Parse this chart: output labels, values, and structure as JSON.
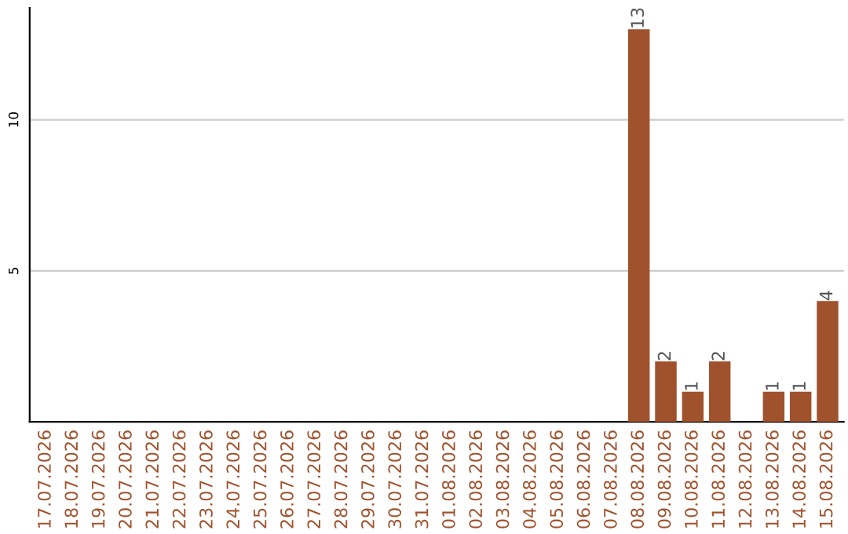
{
  "chart_data": {
    "type": "bar",
    "categories": [
      "17.07.2026",
      "18.07.2026",
      "19.07.2026",
      "20.07.2026",
      "21.07.2026",
      "22.07.2026",
      "23.07.2026",
      "24.07.2026",
      "25.07.2026",
      "26.07.2026",
      "27.07.2026",
      "28.07.2026",
      "29.07.2026",
      "30.07.2026",
      "31.07.2026",
      "01.08.2026",
      "02.08.2026",
      "03.08.2026",
      "04.08.2026",
      "05.08.2026",
      "06.08.2026",
      "07.08.2026",
      "08.08.2026",
      "09.08.2026",
      "10.08.2026",
      "11.08.2026",
      "12.08.2026",
      "13.08.2026",
      "14.08.2026",
      "15.08.2026"
    ],
    "values": [
      0,
      0,
      0,
      0,
      0,
      0,
      0,
      0,
      0,
      0,
      0,
      0,
      0,
      0,
      0,
      0,
      0,
      0,
      0,
      0,
      0,
      0,
      13,
      2,
      1,
      2,
      0,
      1,
      1,
      4
    ],
    "value_labels": [
      null,
      null,
      null,
      null,
      null,
      null,
      null,
      null,
      null,
      null,
      null,
      null,
      null,
      null,
      null,
      null,
      null,
      null,
      null,
      null,
      null,
      null,
      "13",
      "2",
      "1",
      "2",
      null,
      "1",
      "1",
      "4"
    ],
    "color": "#a0522d",
    "ylim": [
      0,
      13.7
    ],
    "yticks": [
      5,
      10
    ],
    "grid": "y"
  }
}
